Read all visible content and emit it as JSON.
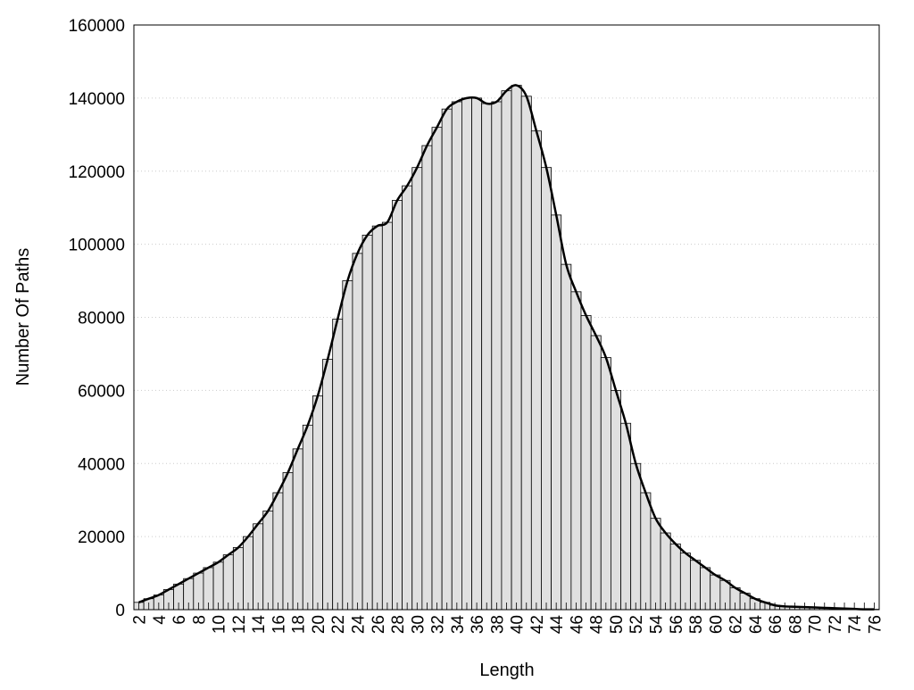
{
  "chart_data": {
    "type": "bar",
    "x_label": "Length",
    "y_label": "Number Of Paths",
    "categories": [
      "2",
      null,
      "4",
      null,
      "6",
      null,
      "8",
      null,
      "10",
      null,
      "12",
      null,
      "14",
      null,
      "16",
      null,
      "18",
      null,
      "20",
      null,
      "22",
      null,
      "24",
      null,
      "26",
      null,
      "28",
      null,
      "30",
      null,
      "32",
      null,
      "34",
      null,
      "36",
      null,
      "38",
      null,
      "40",
      null,
      "42",
      null,
      "44",
      null,
      "46",
      null,
      "48",
      null,
      "50",
      null,
      "52",
      null,
      "54",
      null,
      "56",
      null,
      "58",
      null,
      "60",
      null,
      "62",
      null,
      "64",
      null,
      "66",
      null,
      "68",
      null,
      "70",
      null,
      "72",
      null,
      "74",
      null,
      "76"
    ],
    "values": [
      2000,
      3000,
      4000,
      5500,
      7000,
      8500,
      10000,
      11500,
      13000,
      15000,
      17000,
      20000,
      23500,
      27000,
      32000,
      37500,
      44000,
      50500,
      58500,
      68500,
      79500,
      90000,
      97500,
      102500,
      105000,
      106000,
      112000,
      116000,
      121000,
      127000,
      132000,
      137000,
      139000,
      140000,
      140000,
      138500,
      139000,
      142000,
      143500,
      140500,
      131000,
      121000,
      108000,
      94500,
      87000,
      80500,
      75000,
      69000,
      60000,
      51000,
      40000,
      32000,
      25000,
      21000,
      18000,
      15500,
      13500,
      11500,
      9500,
      8000,
      6000,
      4500,
      3000,
      2000,
      1200,
      900,
      800,
      700,
      600,
      500,
      400,
      300,
      200,
      100,
      100
    ],
    "color": "#e0e0e0",
    "line_color": "#000000",
    "smooth_line": true,
    "ylim": [
      0,
      160000
    ],
    "yticks": [
      0,
      20000,
      40000,
      60000,
      80000,
      100000,
      120000,
      140000,
      160000
    ],
    "grid": true
  }
}
